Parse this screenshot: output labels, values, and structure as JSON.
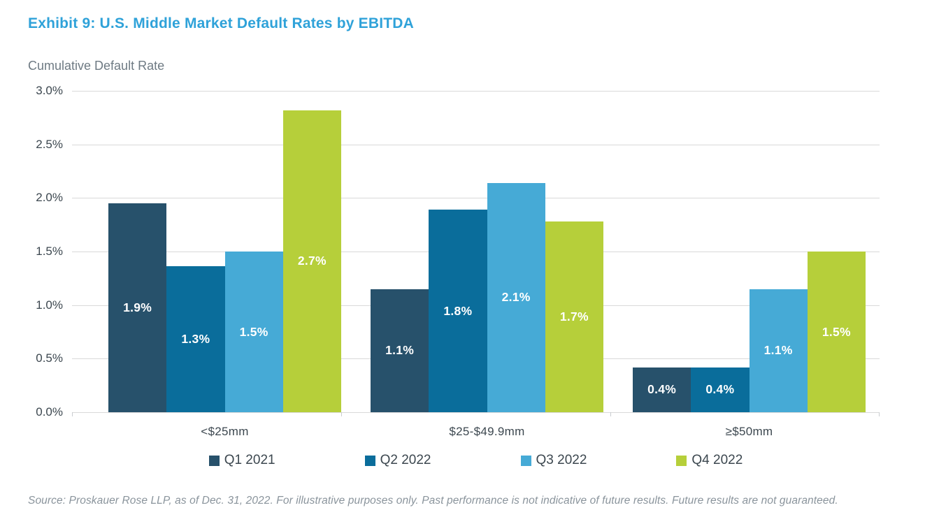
{
  "header": {
    "title": "Exhibit 9: U.S. Middle Market Default Rates by EBITDA"
  },
  "chart_data": {
    "type": "bar",
    "title": "Exhibit 9: U.S. Middle Market Default Rates by EBITDA",
    "ylabel": "Cumulative Default Rate",
    "xlabel": "",
    "categories": [
      "<$25mm",
      "$25-$49.9mm",
      "≥$50mm"
    ],
    "series": [
      {
        "name": "Q1 2021",
        "color": "#27516B",
        "values": [
          1.9,
          1.1,
          0.4
        ],
        "labels": [
          "1.9%",
          "1.1%",
          "0.4%"
        ],
        "bar_heights": [
          1.95,
          1.15,
          0.42
        ]
      },
      {
        "name": "Q2 2022",
        "color": "#0A6D9B",
        "values": [
          1.3,
          1.8,
          0.4
        ],
        "labels": [
          "1.3%",
          "1.8%",
          "0.4%"
        ],
        "bar_heights": [
          1.36,
          1.89,
          0.42
        ]
      },
      {
        "name": "Q3 2022",
        "color": "#46AAD6",
        "values": [
          1.5,
          2.1,
          1.1
        ],
        "labels": [
          "1.5%",
          "2.1%",
          "1.1%"
        ],
        "bar_heights": [
          1.5,
          2.14,
          1.15
        ]
      },
      {
        "name": "Q4 2022",
        "color": "#B6CF3A",
        "values": [
          2.7,
          1.7,
          1.5
        ],
        "labels": [
          "2.7%",
          "1.7%",
          "1.5%"
        ],
        "bar_heights": [
          2.82,
          1.78,
          1.5
        ]
      }
    ],
    "y_ticks": [
      "3.0%",
      "2.5%",
      "2.0%",
      "1.5%",
      "1.0%",
      "0.5%",
      "0.0%"
    ],
    "ylim": [
      0,
      3.0
    ],
    "grid": true,
    "legend_position": "bottom",
    "data_label_color": "#ffffff"
  },
  "colors": {
    "title": "#2FA2D9",
    "subtitle": "#6E7A83",
    "axis_text": "#3C474F",
    "gridline": "#d9d9d9",
    "source_text": "#8A949C"
  },
  "footer": {
    "source": "Source: Proskauer Rose LLP, as of Dec. 31, 2022. For illustrative purposes only. Past performance is not indicative of future results. Future results are not guaranteed."
  }
}
